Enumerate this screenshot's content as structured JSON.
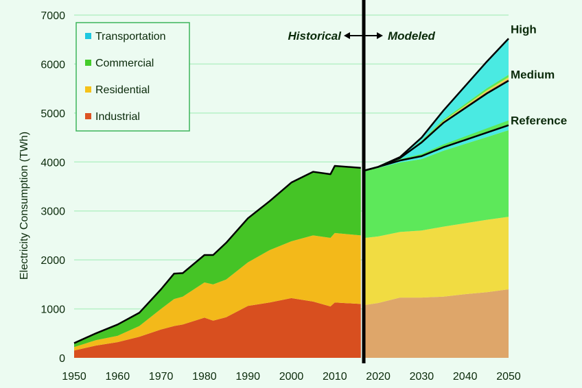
{
  "chart_data": {
    "type": "area",
    "title": "",
    "xlabel": "",
    "ylabel": "Electricity Consumption (TWh)",
    "xlim": [
      1950,
      2050
    ],
    "ylim": [
      0,
      7000
    ],
    "x_ticks": [
      "1950",
      "1960",
      "1970",
      "1980",
      "1990",
      "2000",
      "2010",
      "2020",
      "2030",
      "2040",
      "2050"
    ],
    "y_ticks": [
      "0",
      "1000",
      "2000",
      "3000",
      "4000",
      "5000",
      "6000",
      "7000"
    ],
    "grid": "horizontal",
    "legend_position": "top-left",
    "legend": [
      {
        "name": "Transportation",
        "color": "#1ec8e0"
      },
      {
        "name": "Commercial",
        "color": "#44cc2a"
      },
      {
        "name": "Residential",
        "color": "#f6c21a"
      },
      {
        "name": "Industrial",
        "color": "#dc5424"
      }
    ],
    "annotations": {
      "historical": "Historical",
      "modeled": "Modeled",
      "divider_year": 2016.6
    },
    "historical": {
      "years": [
        1950,
        1955,
        1960,
        1965,
        1970,
        1973,
        1975,
        1980,
        1982,
        1985,
        1990,
        1995,
        2000,
        2005,
        2009,
        2010,
        2016
      ],
      "series": [
        {
          "name": "Industrial",
          "values": [
            150,
            250,
            320,
            430,
            580,
            650,
            680,
            820,
            760,
            830,
            1060,
            1130,
            1220,
            1150,
            1050,
            1130,
            1100
          ]
        },
        {
          "name": "Residential",
          "values": [
            70,
            110,
            130,
            220,
            420,
            550,
            570,
            720,
            740,
            770,
            890,
            1070,
            1160,
            1350,
            1400,
            1420,
            1400
          ]
        },
        {
          "name": "Commercial",
          "values": [
            80,
            140,
            230,
            270,
            400,
            520,
            480,
            560,
            600,
            750,
            900,
            1000,
            1200,
            1300,
            1300,
            1370,
            1380
          ]
        }
      ]
    },
    "modeled": {
      "years": [
        2017,
        2020,
        2025,
        2030,
        2035,
        2040,
        2045,
        2050
      ],
      "series": [
        {
          "name": "Industrial",
          "values": [
            1080,
            1120,
            1230,
            1230,
            1250,
            1300,
            1340,
            1400
          ]
        },
        {
          "name": "Residential",
          "values": [
            1370,
            1360,
            1340,
            1370,
            1430,
            1450,
            1480,
            1480
          ]
        },
        {
          "name": "Commercial",
          "values": [
            1370,
            1400,
            1420,
            1460,
            1550,
            1620,
            1690,
            1770
          ]
        },
        {
          "name": "Transportation",
          "values": [
            10,
            20,
            40,
            60,
            70,
            80,
            90,
            100
          ]
        }
      ],
      "scenarios": [
        {
          "name": "Reference",
          "values": [
            3830,
            3900,
            4030,
            4120,
            4300,
            4450,
            4600,
            4750
          ]
        },
        {
          "name": "Medium",
          "values": [
            3830,
            3900,
            4080,
            4400,
            4800,
            5100,
            5400,
            5660
          ]
        },
        {
          "name": "High",
          "values": [
            3830,
            3900,
            4100,
            4500,
            5050,
            5550,
            6050,
            6520
          ]
        }
      ]
    },
    "colors": {
      "industrial_hist": "#d84f1f",
      "residential_hist": "#f3b91a",
      "commercial_hist": "#45c426",
      "industrial_model": "#dea66a",
      "residential_model": "#f1dc42",
      "commercial_model": "#5de85a",
      "transportation": "#4aeae2",
      "grid": "#b6f0c6",
      "text": "#0a2a0a"
    }
  }
}
